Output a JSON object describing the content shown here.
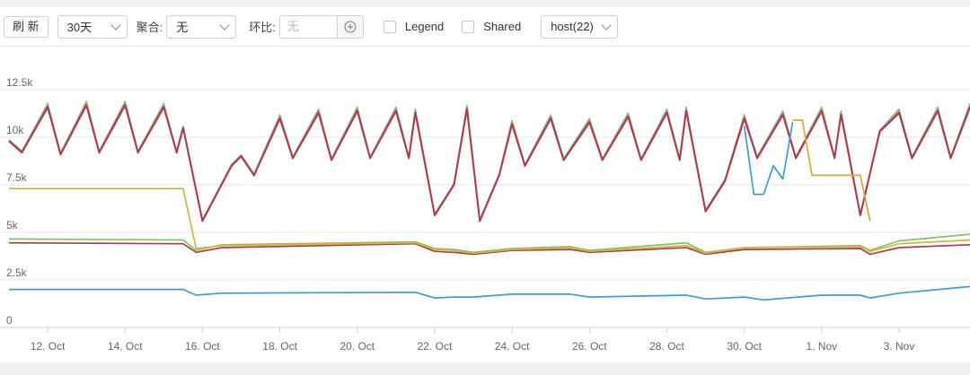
{
  "toolbar": {
    "refresh_label": "刷 新",
    "range_value": "30天",
    "aggregate_label": "聚合:",
    "aggregate_value": "无",
    "compare_label": "环比:",
    "compare_placeholder": "无",
    "legend_label": "Legend",
    "shared_label": "Shared",
    "host_value": "host(22)"
  },
  "colors": {
    "red_group": "#b5384a",
    "blue": "#3a9fd4",
    "yellow": "#c9b942",
    "green": "#84c35d",
    "gold": "#d4a93a",
    "grid": "#e6e6e6",
    "axis_text": "#666666"
  },
  "chart_data": {
    "type": "line",
    "x_start": "2024-10-11",
    "x_end": "2024-11-04T20:00",
    "x_ticks": [
      "12. Oct",
      "14. Oct",
      "16. Oct",
      "18. Oct",
      "20. Oct",
      "22. Oct",
      "24. Oct",
      "26. Oct",
      "28. Oct",
      "30. Oct",
      "1. Nov",
      "3. Nov"
    ],
    "y_ticks": [
      "0",
      "2.5k",
      "5k",
      "7.5k",
      "10k",
      "12.5k"
    ],
    "ylim": [
      0,
      12500
    ],
    "legend": "hidden",
    "grid": true,
    "upper_group_peaks": [
      [
        "2024-10-11",
        9800
      ],
      [
        "2024-10-12",
        11600
      ],
      [
        "2024-10-13",
        11700
      ],
      [
        "2024-10-14",
        11700
      ],
      [
        "2024-10-15",
        11600
      ],
      [
        "2024-10-15T12:00",
        10500
      ],
      [
        "2024-10-16",
        5600
      ],
      [
        "2024-10-16T18:00",
        8500
      ],
      [
        "2024-10-17",
        9000
      ],
      [
        "2024-10-18",
        11000
      ],
      [
        "2024-10-19",
        11300
      ],
      [
        "2024-10-20",
        11400
      ],
      [
        "2024-10-21",
        11400
      ],
      [
        "2024-10-21T12:00",
        11300
      ],
      [
        "2024-10-22",
        5900
      ],
      [
        "2024-10-22T12:00",
        7500
      ],
      [
        "2024-10-22T20:00",
        11500
      ],
      [
        "2024-10-23T04:00",
        5600
      ],
      [
        "2024-10-23T16:00",
        8000
      ],
      [
        "2024-10-24",
        10700
      ],
      [
        "2024-10-25",
        11000
      ],
      [
        "2024-10-26",
        10800
      ],
      [
        "2024-10-27",
        11100
      ],
      [
        "2024-10-28",
        11300
      ],
      [
        "2024-10-28T12:00",
        11400
      ],
      [
        "2024-10-29",
        6100
      ],
      [
        "2024-10-29T12:00",
        7700
      ],
      [
        "2024-10-30",
        11000
      ],
      [
        "2024-10-31",
        11200
      ],
      [
        "2024-11-01",
        11400
      ],
      [
        "2024-11-01T12:00",
        11200
      ],
      [
        "2024-11-02",
        5900
      ],
      [
        "2024-11-02T12:00",
        10300
      ],
      [
        "2024-11-03",
        11300
      ],
      [
        "2024-11-04",
        11400
      ],
      [
        "2024-11-04T20:00",
        11600
      ]
    ],
    "upper_group_troughs": [
      [
        "2024-10-11T08:00",
        9200
      ],
      [
        "2024-10-12T08:00",
        9100
      ],
      [
        "2024-10-13T08:00",
        9200
      ],
      [
        "2024-10-14T08:00",
        9200
      ],
      [
        "2024-10-15T08:00",
        9200
      ],
      [
        "2024-10-17T08:00",
        8000
      ],
      [
        "2024-10-18T08:00",
        8900
      ],
      [
        "2024-10-19T08:00",
        8800
      ],
      [
        "2024-10-20T08:00",
        8900
      ],
      [
        "2024-10-21T08:00",
        8900
      ],
      [
        "2024-10-24T08:00",
        8500
      ],
      [
        "2024-10-25T08:00",
        8800
      ],
      [
        "2024-10-26T08:00",
        8800
      ],
      [
        "2024-10-27T08:00",
        8800
      ],
      [
        "2024-10-28T08:00",
        8800
      ],
      [
        "2024-10-30T08:00",
        8900
      ],
      [
        "2024-10-31T08:00",
        8900
      ],
      [
        "2024-11-01T08:00",
        8900
      ],
      [
        "2024-11-03T08:00",
        8900
      ],
      [
        "2024-11-04T08:00",
        8900
      ]
    ],
    "series": [
      {
        "color": "#b5384a",
        "values": [
          [
            "2024-10-11",
            4450
          ],
          [
            "2024-10-15T12:00",
            4400
          ],
          [
            "2024-10-15T20:00",
            3950
          ],
          [
            "2024-10-16T12:00",
            4200
          ],
          [
            "2024-10-21T12:00",
            4400
          ],
          [
            "2024-10-22",
            4000
          ],
          [
            "2024-10-22T12:00",
            3950
          ],
          [
            "2024-10-23",
            3850
          ],
          [
            "2024-10-24",
            4050
          ],
          [
            "2024-10-25T12:00",
            4100
          ],
          [
            "2024-10-26",
            3950
          ],
          [
            "2024-10-28T12:00",
            4200
          ],
          [
            "2024-10-29",
            3850
          ],
          [
            "2024-10-30",
            4100
          ],
          [
            "2024-11-02",
            4150
          ],
          [
            "2024-11-02T06:00",
            3850
          ],
          [
            "2024-11-03",
            4200
          ],
          [
            "2024-11-04T20:00",
            4350
          ]
        ]
      },
      {
        "color": "#84c35d",
        "values": [
          [
            "2024-10-11",
            4650
          ],
          [
            "2024-10-15T12:00",
            4600
          ],
          [
            "2024-10-15T20:00",
            4050
          ],
          [
            "2024-10-16T12:00",
            4350
          ],
          [
            "2024-10-21T12:00",
            4500
          ],
          [
            "2024-10-22",
            4150
          ],
          [
            "2024-10-22T12:00",
            4100
          ],
          [
            "2024-10-23",
            3950
          ],
          [
            "2024-10-24",
            4150
          ],
          [
            "2024-10-25T12:00",
            4250
          ],
          [
            "2024-10-26",
            4050
          ],
          [
            "2024-10-28T12:00",
            4450
          ],
          [
            "2024-10-29",
            3950
          ],
          [
            "2024-10-30",
            4200
          ],
          [
            "2024-11-02",
            4300
          ],
          [
            "2024-11-02T06:00",
            4050
          ],
          [
            "2024-11-03",
            4550
          ],
          [
            "2024-11-04T20:00",
            4900
          ]
        ]
      },
      {
        "color": "#c9b942",
        "values": [
          [
            "2024-10-11",
            7300
          ],
          [
            "2024-10-15T12:00",
            7300
          ],
          [
            "2024-10-15T20:00",
            4150
          ],
          [
            "2024-10-16T12:00",
            4300
          ],
          [
            "2024-10-21T12:00",
            4450
          ],
          [
            "2024-10-22",
            4100
          ],
          [
            "2024-10-22T12:00",
            4050
          ],
          [
            "2024-10-23",
            3900
          ],
          [
            "2024-10-24",
            4100
          ],
          [
            "2024-10-25T12:00",
            4200
          ],
          [
            "2024-10-26",
            4000
          ],
          [
            "2024-10-28T12:00",
            4300
          ],
          [
            "2024-10-29",
            3900
          ],
          [
            "2024-10-30",
            4200
          ],
          [
            "2024-11-02",
            4250
          ],
          [
            "2024-11-02T06:00",
            4000
          ],
          [
            "2024-11-03",
            4400
          ],
          [
            "2024-11-04T20:00",
            4600
          ]
        ]
      },
      {
        "color": "#3a9fd4",
        "values": [
          [
            "2024-10-11",
            2000
          ],
          [
            "2024-10-15T12:00",
            2000
          ],
          [
            "2024-10-15T20:00",
            1700
          ],
          [
            "2024-10-16T12:00",
            1800
          ],
          [
            "2024-10-21T12:00",
            1850
          ],
          [
            "2024-10-22",
            1550
          ],
          [
            "2024-10-22T12:00",
            1600
          ],
          [
            "2024-10-23",
            1600
          ],
          [
            "2024-10-24",
            1750
          ],
          [
            "2024-10-25T12:00",
            1750
          ],
          [
            "2024-10-26",
            1600
          ],
          [
            "2024-10-28T12:00",
            1700
          ],
          [
            "2024-10-29",
            1500
          ],
          [
            "2024-10-30",
            1600
          ],
          [
            "2024-10-30T12:00",
            1450
          ],
          [
            "2024-11-01",
            1700
          ],
          [
            "2024-11-02",
            1700
          ],
          [
            "2024-11-02T06:00",
            1550
          ],
          [
            "2024-11-03",
            1800
          ],
          [
            "2024-11-04T20:00",
            2150
          ]
        ]
      },
      {
        "color": "#3a9fd4",
        "values": [
          [
            "2024-10-30",
            10600
          ],
          [
            "2024-10-30T06:00",
            7000
          ],
          [
            "2024-10-30T12:00",
            7000
          ],
          [
            "2024-10-30T18:00",
            8500
          ],
          [
            "2024-10-31",
            7800
          ],
          [
            "2024-10-31T06:00",
            10800
          ]
        ]
      },
      {
        "color": "#d4a93a",
        "values": [
          [
            "2024-10-31T06:00",
            10900
          ],
          [
            "2024-10-31T12:00",
            10900
          ],
          [
            "2024-10-31T18:00",
            8000
          ],
          [
            "2024-11-02",
            8000
          ],
          [
            "2024-11-02T06:00",
            5600
          ]
        ]
      }
    ]
  }
}
